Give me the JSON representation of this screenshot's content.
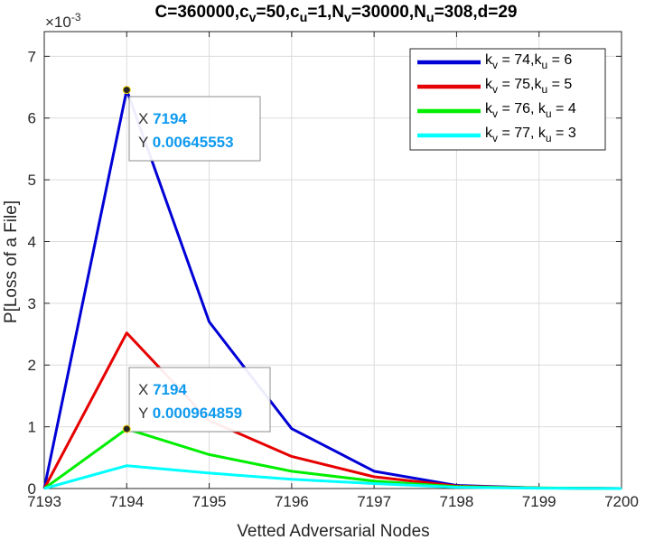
{
  "chart_data": {
    "type": "line",
    "title_parts": [
      {
        "t": "C=360000,c",
        "s": null
      },
      {
        "t": "v",
        "s": "sub"
      },
      {
        "t": "=50,c",
        "s": null
      },
      {
        "t": "u",
        "s": "sub"
      },
      {
        "t": "=1,N",
        "s": null
      },
      {
        "t": "v",
        "s": "sub"
      },
      {
        "t": "=30000,N",
        "s": null
      },
      {
        "t": "u",
        "s": "sub"
      },
      {
        "t": "=308,d=29",
        "s": null
      }
    ],
    "xlabel": "Vetted Adversarial Nodes",
    "ylabel": "P[Loss of a File]",
    "y_exponent_label": "×10",
    "y_exponent_power": "-3",
    "xlim": [
      7193,
      7200
    ],
    "ylim": [
      0,
      7.4
    ],
    "y_scale_note": "values in units of 1e-3",
    "x_ticks": [
      "7193",
      "7194",
      "7195",
      "7196",
      "7197",
      "7198",
      "7199",
      "7200"
    ],
    "y_ticks": [
      "0",
      "1",
      "2",
      "3",
      "4",
      "5",
      "6",
      "7"
    ],
    "grid": true,
    "legend_position": "top-right",
    "x": [
      7193,
      7194,
      7195,
      7196,
      7197,
      7198,
      7199,
      7200
    ],
    "series": [
      {
        "label_parts": [
          {
            "t": "k",
            "s": null
          },
          {
            "t": "v",
            "s": "sub"
          },
          {
            "t": " = 74,k",
            "s": null
          },
          {
            "t": "u",
            "s": "sub"
          },
          {
            "t": " = 6",
            "s": null
          }
        ],
        "color": "#0000d6",
        "values": [
          0,
          6.45553,
          2.7,
          0.97,
          0.28,
          0.05,
          0.01,
          0.0
        ]
      },
      {
        "label_parts": [
          {
            "t": "k",
            "s": null
          },
          {
            "t": "v",
            "s": "sub"
          },
          {
            "t": " = 75,k",
            "s": null
          },
          {
            "t": "u",
            "s": "sub"
          },
          {
            "t": " = 5",
            "s": null
          }
        ],
        "color": "#e60000",
        "values": [
          0,
          2.52,
          1.1,
          0.52,
          0.19,
          0.04,
          0.01,
          0.0
        ]
      },
      {
        "label_parts": [
          {
            "t": "k",
            "s": null
          },
          {
            "t": "v",
            "s": "sub"
          },
          {
            "t": " = 76, k",
            "s": null
          },
          {
            "t": "u",
            "s": "sub"
          },
          {
            "t": " = 4",
            "s": null
          }
        ],
        "color": "#00ee00",
        "values": [
          0,
          0.964859,
          0.55,
          0.28,
          0.12,
          0.03,
          0.01,
          0.0
        ]
      },
      {
        "label_parts": [
          {
            "t": "k",
            "s": null
          },
          {
            "t": "v",
            "s": "sub"
          },
          {
            "t": " = 77, k",
            "s": null
          },
          {
            "t": "u",
            "s": "sub"
          },
          {
            "t": " = 3",
            "s": null
          }
        ],
        "color": "#00ffff",
        "values": [
          0,
          0.37,
          0.25,
          0.15,
          0.08,
          0.02,
          0.005,
          0.0
        ]
      }
    ],
    "datatips": [
      {
        "x_key": "X",
        "y_key": "Y",
        "x_value": "7194",
        "y_value": "0.00645553",
        "point": [
          7194,
          6.45553
        ]
      },
      {
        "x_key": "X",
        "y_key": "Y",
        "x_value": "7194",
        "y_value": "0.000964859",
        "point": [
          7194,
          0.964859
        ]
      }
    ]
  }
}
